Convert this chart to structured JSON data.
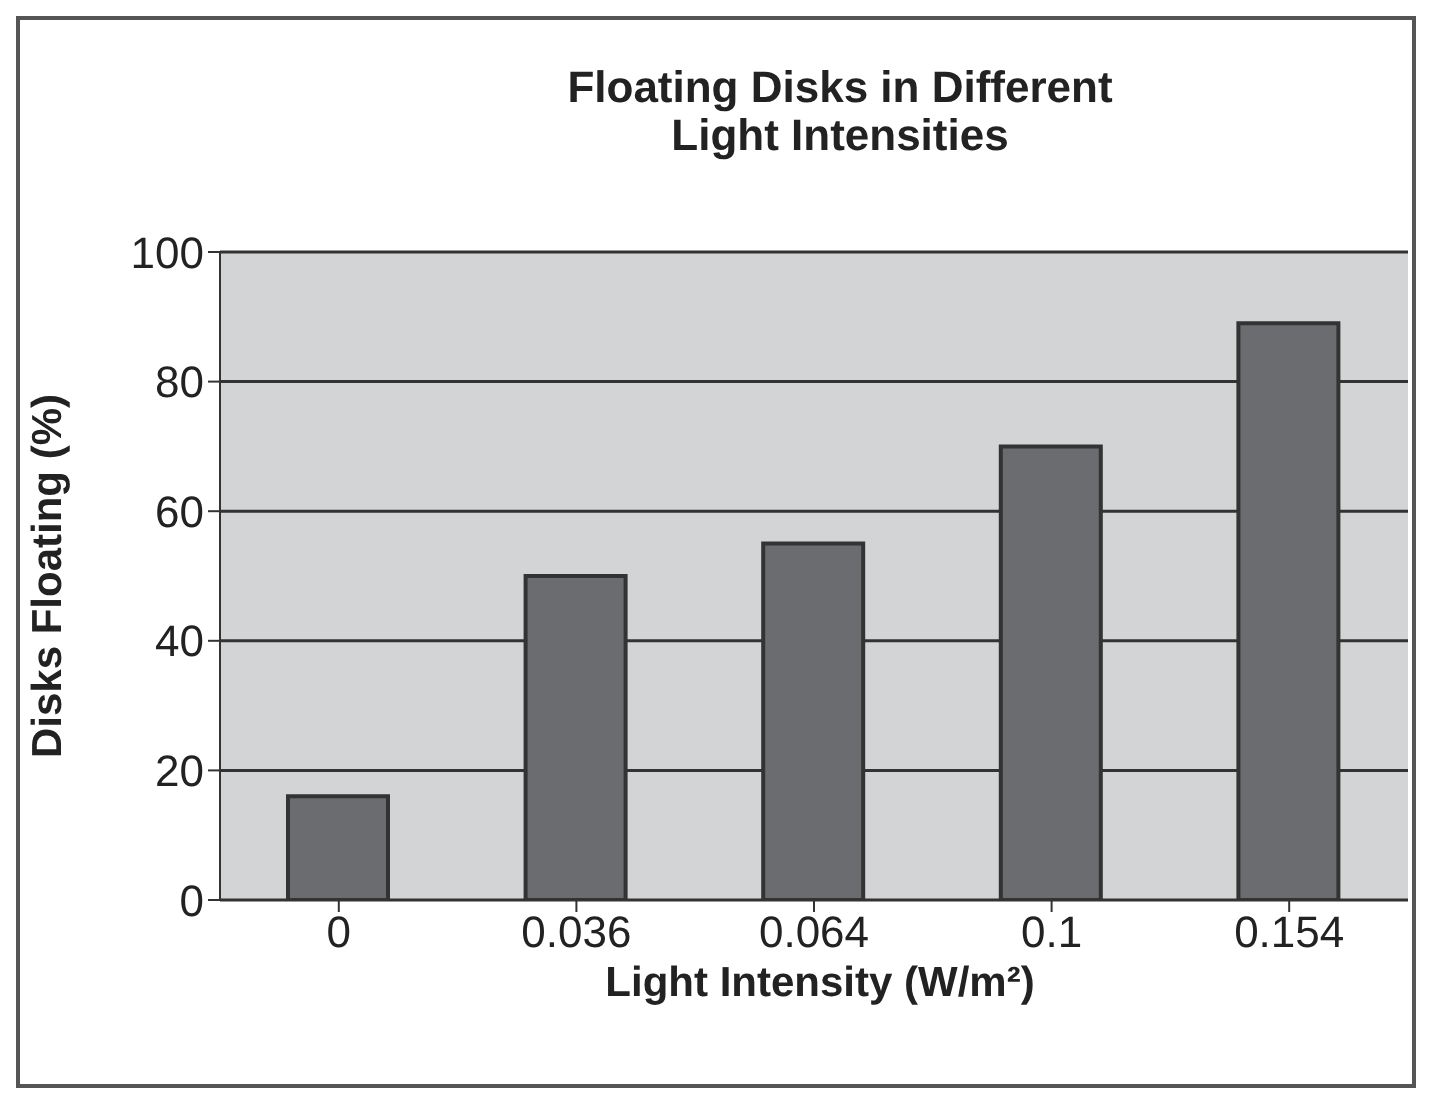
{
  "chart_data": {
    "type": "bar",
    "title": "Floating Disks in Different\nLight Intensities",
    "xlabel": "Light Intensity (W/m²)",
    "ylabel": "Disks Floating (%)",
    "categories": [
      "0",
      "0.036",
      "0.064",
      "0.1",
      "0.154"
    ],
    "values": [
      16,
      50,
      55,
      70,
      89
    ],
    "color": "#6b6c70",
    "ylim": [
      0,
      100
    ],
    "yticks": [
      0,
      20,
      40,
      60,
      80,
      100
    ],
    "grid": "y"
  }
}
